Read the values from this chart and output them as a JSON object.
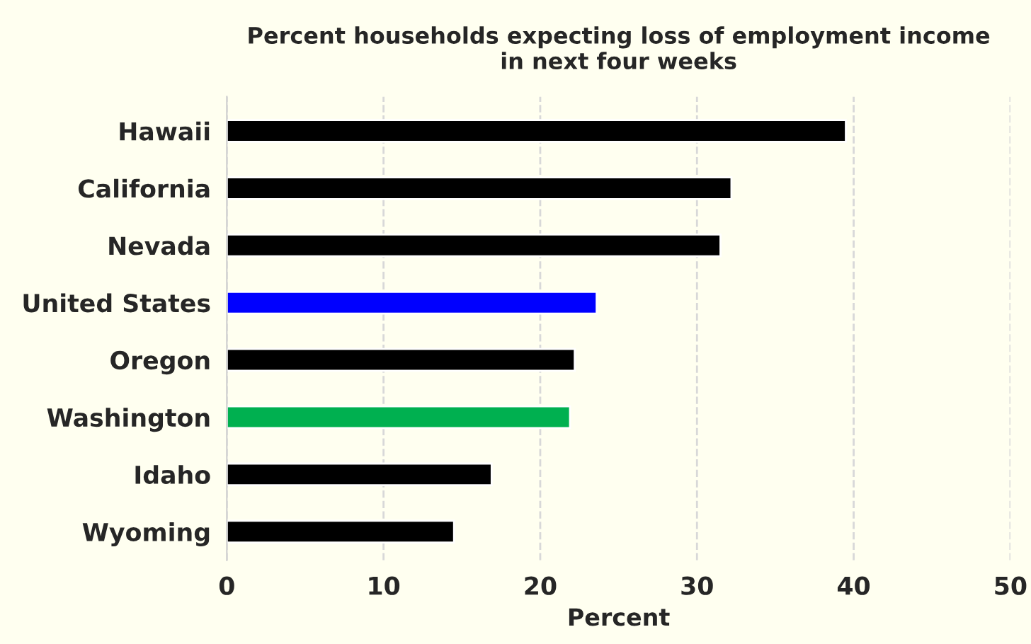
{
  "chart_data": {
    "type": "bar",
    "orientation": "horizontal",
    "title": "Percent households expecting loss of employment income\nin next four weeks",
    "xlabel": "Percent",
    "categories": [
      "Hawaii",
      "California",
      "Nevada",
      "United States",
      "Oregon",
      "Washington",
      "Idaho",
      "Wyoming"
    ],
    "values": [
      39.5,
      32.2,
      31.5,
      23.6,
      22.2,
      21.9,
      16.9,
      14.5
    ],
    "colors": [
      "#000000",
      "#000000",
      "#000000",
      "#0000ff",
      "#000000",
      "#00b050",
      "#000000",
      "#000000"
    ],
    "xlim": [
      0,
      50
    ],
    "xticks": [
      0,
      10,
      20,
      30,
      40,
      50
    ],
    "grid": "x",
    "line_style": "dashed"
  }
}
